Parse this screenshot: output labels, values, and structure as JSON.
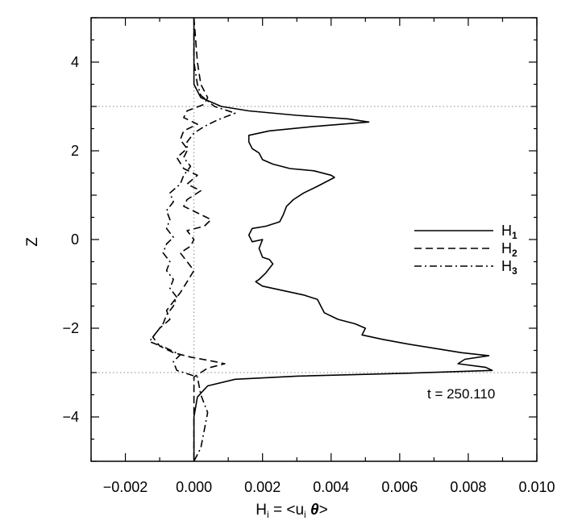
{
  "chart_data": {
    "type": "line",
    "orientation": "vertical-profile",
    "xlabel": "H",
    "xlabel_sub": "i",
    "xlabel_rest": " = <u",
    "xlabel_sub2": "i",
    "xlabel_theta": " θ",
    "xlabel_close": ">",
    "ylabel": "Z",
    "xlim": [
      -0.003,
      0.01
    ],
    "ylim": [
      -5,
      5
    ],
    "x_ticks": [
      -0.002,
      0.0,
      0.002,
      0.004,
      0.006,
      0.008,
      0.01
    ],
    "x_tick_labels": [
      "−0.002",
      "0.000",
      "0.002",
      "0.004",
      "0.006",
      "0.008",
      "0.010"
    ],
    "y_ticks": [
      -4,
      -2,
      0,
      2,
      4
    ],
    "y_tick_labels": [
      "−4",
      "−2",
      "0",
      "2",
      "4"
    ],
    "ref_lines": {
      "x": [
        0.0
      ],
      "y": [
        3.0,
        -3.0
      ]
    },
    "annotation": "t = 250.110",
    "legend_position": "right",
    "series": [
      {
        "name": "H",
        "sub": "1",
        "dash": "solid",
        "points": [
          [
            0.0,
            5.0
          ],
          [
            0.0,
            4.0
          ],
          [
            0.0,
            3.5
          ],
          [
            0.0002,
            3.2
          ],
          [
            0.0008,
            3.0
          ],
          [
            0.0016,
            2.9
          ],
          [
            0.003,
            2.8
          ],
          [
            0.0045,
            2.72
          ],
          [
            0.0051,
            2.65
          ],
          [
            0.0035,
            2.55
          ],
          [
            0.0022,
            2.45
          ],
          [
            0.0016,
            2.35
          ],
          [
            0.0016,
            2.2
          ],
          [
            0.0017,
            2.05
          ],
          [
            0.0019,
            1.95
          ],
          [
            0.002,
            1.8
          ],
          [
            0.0023,
            1.7
          ],
          [
            0.0028,
            1.6
          ],
          [
            0.0035,
            1.55
          ],
          [
            0.004,
            1.45
          ],
          [
            0.0041,
            1.4
          ],
          [
            0.0036,
            1.2
          ],
          [
            0.0032,
            1.05
          ],
          [
            0.0029,
            0.9
          ],
          [
            0.0027,
            0.75
          ],
          [
            0.0026,
            0.55
          ],
          [
            0.0025,
            0.4
          ],
          [
            0.0021,
            0.3
          ],
          [
            0.0017,
            0.25
          ],
          [
            0.0016,
            0.1
          ],
          [
            0.0017,
            -0.05
          ],
          [
            0.002,
            0.0
          ],
          [
            0.0019,
            -0.2
          ],
          [
            0.002,
            -0.4
          ],
          [
            0.0022,
            -0.45
          ],
          [
            0.0023,
            -0.55
          ],
          [
            0.0021,
            -0.75
          ],
          [
            0.0019,
            -0.9
          ],
          [
            0.0018,
            -0.95
          ],
          [
            0.002,
            -1.05
          ],
          [
            0.0026,
            -1.15
          ],
          [
            0.0032,
            -1.25
          ],
          [
            0.0036,
            -1.35
          ],
          [
            0.0037,
            -1.5
          ],
          [
            0.0038,
            -1.65
          ],
          [
            0.0042,
            -1.8
          ],
          [
            0.0047,
            -1.9
          ],
          [
            0.005,
            -2.0
          ],
          [
            0.0049,
            -2.15
          ],
          [
            0.0055,
            -2.25
          ],
          [
            0.0062,
            -2.35
          ],
          [
            0.007,
            -2.45
          ],
          [
            0.0078,
            -2.55
          ],
          [
            0.0086,
            -2.62
          ],
          [
            0.0079,
            -2.7
          ],
          [
            0.0077,
            -2.8
          ],
          [
            0.0085,
            -2.88
          ],
          [
            0.0087,
            -2.95
          ],
          [
            0.006,
            -3.02
          ],
          [
            0.003,
            -3.08
          ],
          [
            0.0012,
            -3.15
          ],
          [
            0.0004,
            -3.3
          ],
          [
            0.0001,
            -3.55
          ],
          [
            0.0,
            -4.0
          ],
          [
            0.0,
            -5.0
          ]
        ]
      },
      {
        "name": "H",
        "sub": "2",
        "dash": "dashed",
        "points": [
          [
            0.0,
            5.0
          ],
          [
            0.0001,
            4.0
          ],
          [
            0.0002,
            3.5
          ],
          [
            0.0004,
            3.2
          ],
          [
            0.0003,
            3.05
          ],
          [
            -0.0002,
            2.9
          ],
          [
            -0.0003,
            2.75
          ],
          [
            0.0001,
            2.6
          ],
          [
            -0.0003,
            2.45
          ],
          [
            -0.0004,
            2.25
          ],
          [
            -0.0002,
            2.05
          ],
          [
            -0.0005,
            1.85
          ],
          [
            -0.0003,
            1.6
          ],
          [
            0.0001,
            1.45
          ],
          [
            -0.0002,
            1.25
          ],
          [
            0.0002,
            1.1
          ],
          [
            -0.0002,
            0.9
          ],
          [
            -0.0003,
            0.75
          ],
          [
            0.0001,
            0.6
          ],
          [
            0.0005,
            0.45
          ],
          [
            0.0003,
            0.3
          ],
          [
            -0.0002,
            0.2
          ],
          [
            0.0,
            0.0
          ],
          [
            -0.0001,
            -0.15
          ],
          [
            -0.0004,
            -0.3
          ],
          [
            -0.0002,
            -0.5
          ],
          [
            0.0,
            -0.7
          ],
          [
            -0.0002,
            -0.95
          ],
          [
            -0.0004,
            -1.2
          ],
          [
            -0.0006,
            -1.4
          ],
          [
            -0.0008,
            -1.6
          ],
          [
            -0.0007,
            -1.8
          ],
          [
            -0.001,
            -2.0
          ],
          [
            -0.0012,
            -2.2
          ],
          [
            -0.001,
            -2.4
          ],
          [
            -0.0006,
            -2.55
          ],
          [
            -0.0001,
            -2.65
          ],
          [
            0.0006,
            -2.75
          ],
          [
            0.0009,
            -2.8
          ],
          [
            0.0004,
            -2.9
          ],
          [
            0.0002,
            -3.0
          ],
          [
            0.0,
            -3.1
          ],
          [
            0.0,
            -4.0
          ],
          [
            0.0,
            -5.0
          ]
        ]
      },
      {
        "name": "H",
        "sub": "3",
        "dash": "dashdot",
        "points": [
          [
            0.0,
            5.0
          ],
          [
            0.0,
            4.0
          ],
          [
            0.0001,
            3.5
          ],
          [
            0.0002,
            3.25
          ],
          [
            0.0006,
            3.0
          ],
          [
            0.0012,
            2.85
          ],
          [
            0.0007,
            2.7
          ],
          [
            0.0003,
            2.55
          ],
          [
            0.0,
            2.4
          ],
          [
            -0.0002,
            2.2
          ],
          [
            -0.0002,
            2.0
          ],
          [
            -0.0003,
            1.85
          ],
          [
            -0.0001,
            1.65
          ],
          [
            -0.0003,
            1.45
          ],
          [
            -0.0004,
            1.25
          ],
          [
            -0.0007,
            1.05
          ],
          [
            -0.0006,
            0.85
          ],
          [
            -0.0008,
            0.65
          ],
          [
            -0.0007,
            0.45
          ],
          [
            -0.0008,
            0.25
          ],
          [
            -0.0006,
            0.05
          ],
          [
            -0.0008,
            -0.1
          ],
          [
            -0.0009,
            -0.3
          ],
          [
            -0.0007,
            -0.5
          ],
          [
            -0.0008,
            -0.7
          ],
          [
            -0.0006,
            -0.9
          ],
          [
            -0.0007,
            -1.1
          ],
          [
            -0.0005,
            -1.3
          ],
          [
            -0.0006,
            -1.5
          ],
          [
            -0.0008,
            -1.7
          ],
          [
            -0.0009,
            -1.9
          ],
          [
            -0.0011,
            -2.1
          ],
          [
            -0.0013,
            -2.3
          ],
          [
            -0.0008,
            -2.45
          ],
          [
            -0.0004,
            -2.6
          ],
          [
            -0.0006,
            -2.75
          ],
          [
            -0.0005,
            -2.95
          ],
          [
            0.0001,
            -3.1
          ],
          [
            0.0002,
            -3.5
          ],
          [
            0.0004,
            -3.9
          ],
          [
            0.0003,
            -4.3
          ],
          [
            0.0002,
            -4.7
          ],
          [
            0.0,
            -5.0
          ]
        ]
      }
    ]
  }
}
